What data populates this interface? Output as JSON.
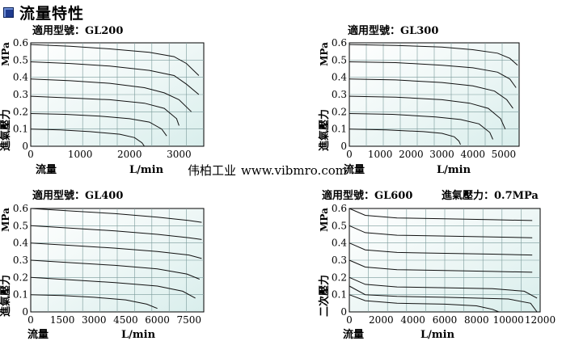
{
  "header": {
    "icon": "square-bullet-icon",
    "title": "流量特性"
  },
  "watermark": {
    "brand": "伟柏工业",
    "url": "www.vibmro.com"
  },
  "chart_data": [
    {
      "type": "line",
      "model_label": "適用型號：GL200",
      "ylabel": "進氣壓力",
      "yunit": "MPa",
      "xlabel": "流量",
      "xunit": "L/min",
      "xticks": [
        0,
        1000,
        2000,
        3000
      ],
      "yticks": [
        0,
        0.1,
        0.2,
        0.3,
        0.4,
        0.5,
        0.6
      ],
      "xlim": [
        0,
        3500
      ],
      "ylim": [
        0,
        0.6
      ],
      "grid": true,
      "series": [
        {
          "x": [
            0,
            800,
            1600,
            2400,
            2900,
            3150,
            3400
          ],
          "y": [
            0.59,
            0.58,
            0.565,
            0.545,
            0.52,
            0.48,
            0.41
          ]
        },
        {
          "x": [
            0,
            800,
            1600,
            2400,
            2900,
            3150,
            3400
          ],
          "y": [
            0.49,
            0.48,
            0.465,
            0.44,
            0.41,
            0.36,
            0.3
          ]
        },
        {
          "x": [
            0,
            800,
            1600,
            2300,
            2700,
            3000,
            3250
          ],
          "y": [
            0.39,
            0.38,
            0.365,
            0.34,
            0.31,
            0.27,
            0.2
          ]
        },
        {
          "x": [
            0,
            800,
            1600,
            2300,
            2700,
            2950,
            3000
          ],
          "y": [
            0.29,
            0.28,
            0.27,
            0.25,
            0.22,
            0.16,
            0.12
          ]
        },
        {
          "x": [
            0,
            700,
            1400,
            2000,
            2400,
            2650,
            2750
          ],
          "y": [
            0.19,
            0.185,
            0.175,
            0.16,
            0.14,
            0.1,
            0.06
          ]
        },
        {
          "x": [
            0,
            600,
            1200,
            1800,
            2100,
            2250,
            2300
          ],
          "y": [
            0.1,
            0.095,
            0.085,
            0.07,
            0.05,
            0.02,
            0.0
          ]
        }
      ]
    },
    {
      "type": "line",
      "model_label": "適用型號：GL300",
      "ylabel": "進氣壓力",
      "yunit": "MPa",
      "xlabel": "流量",
      "xunit": "L/min",
      "xticks": [
        0,
        1000,
        2000,
        3000,
        4000,
        5000
      ],
      "yticks": [
        0,
        0.1,
        0.2,
        0.3,
        0.4,
        0.5,
        0.6
      ],
      "xlim": [
        0,
        5500
      ],
      "ylim": [
        0,
        0.6
      ],
      "grid": true,
      "series": [
        {
          "x": [
            0,
            1500,
            3000,
            4000,
            4800,
            5200,
            5450
          ],
          "y": [
            0.59,
            0.585,
            0.575,
            0.56,
            0.54,
            0.51,
            0.47
          ]
        },
        {
          "x": [
            0,
            1500,
            3000,
            4000,
            4800,
            5200,
            5400
          ],
          "y": [
            0.49,
            0.485,
            0.47,
            0.455,
            0.43,
            0.39,
            0.34
          ]
        },
        {
          "x": [
            0,
            1500,
            3000,
            4000,
            4700,
            5100,
            5300
          ],
          "y": [
            0.39,
            0.385,
            0.37,
            0.35,
            0.32,
            0.27,
            0.22
          ]
        },
        {
          "x": [
            0,
            1500,
            3000,
            3900,
            4500,
            4900,
            5050
          ],
          "y": [
            0.29,
            0.285,
            0.27,
            0.25,
            0.22,
            0.16,
            0.1
          ]
        },
        {
          "x": [
            0,
            1400,
            2800,
            3600,
            4200,
            4550,
            4650
          ],
          "y": [
            0.19,
            0.185,
            0.17,
            0.155,
            0.13,
            0.08,
            0.04
          ]
        },
        {
          "x": [
            0,
            1200,
            2400,
            3000,
            3400,
            3550,
            3600
          ],
          "y": [
            0.1,
            0.095,
            0.085,
            0.075,
            0.055,
            0.03,
            0.01
          ]
        }
      ]
    },
    {
      "type": "line",
      "model_label": "適用型號：GL400",
      "ylabel": "進氣壓力",
      "yunit": "MPa",
      "xlabel": "流量",
      "xunit": "L/min",
      "xticks": [
        0,
        1500,
        3000,
        4500,
        6000,
        7500
      ],
      "yticks": [
        0,
        0.1,
        0.2,
        0.3,
        0.4,
        0.5,
        0.6
      ],
      "xlim": [
        0,
        8200
      ],
      "ylim": [
        0,
        0.6
      ],
      "grid": true,
      "series": [
        {
          "x": [
            0,
            2000,
            4000,
            6000,
            7500,
            8100
          ],
          "y": [
            0.6,
            0.585,
            0.57,
            0.55,
            0.53,
            0.52
          ]
        },
        {
          "x": [
            0,
            2000,
            4000,
            6000,
            7500,
            8100
          ],
          "y": [
            0.5,
            0.485,
            0.47,
            0.45,
            0.43,
            0.42
          ]
        },
        {
          "x": [
            0,
            2000,
            4000,
            6000,
            7500,
            8100
          ],
          "y": [
            0.4,
            0.385,
            0.37,
            0.35,
            0.33,
            0.31
          ]
        },
        {
          "x": [
            0,
            2000,
            4000,
            6000,
            7400,
            8000
          ],
          "y": [
            0.3,
            0.285,
            0.27,
            0.25,
            0.22,
            0.19
          ]
        },
        {
          "x": [
            0,
            2000,
            4000,
            6000,
            7200,
            7800
          ],
          "y": [
            0.2,
            0.185,
            0.17,
            0.15,
            0.12,
            0.08
          ]
        },
        {
          "x": [
            0,
            1500,
            3000,
            4500,
            5500,
            6000
          ],
          "y": [
            0.1,
            0.095,
            0.085,
            0.07,
            0.045,
            0.02
          ]
        }
      ]
    },
    {
      "type": "line",
      "model_label": "適用型號：GL600",
      "inlet_label": "進氣壓力：0.7MPa",
      "ylabel": "二次壓力",
      "yunit": "MPa",
      "xlabel": "流量",
      "xunit": "L/min",
      "xticks": [
        0,
        2000,
        4000,
        6000,
        8000,
        10000,
        12000
      ],
      "yticks": [
        0,
        0.1,
        0.2,
        0.3,
        0.4,
        0.5,
        0.6
      ],
      "xlim": [
        0,
        12000
      ],
      "ylim": [
        0,
        0.6
      ],
      "grid": true,
      "series": [
        {
          "x": [
            0,
            1000,
            3000,
            6000,
            9000,
            11500
          ],
          "y": [
            0.6,
            0.56,
            0.545,
            0.54,
            0.535,
            0.53
          ]
        },
        {
          "x": [
            0,
            1000,
            3000,
            6000,
            9000,
            11500
          ],
          "y": [
            0.5,
            0.46,
            0.445,
            0.44,
            0.435,
            0.43
          ]
        },
        {
          "x": [
            0,
            1000,
            3000,
            6000,
            9000,
            11500
          ],
          "y": [
            0.4,
            0.36,
            0.345,
            0.34,
            0.335,
            0.33
          ]
        },
        {
          "x": [
            0,
            1000,
            3000,
            6000,
            9000,
            11500
          ],
          "y": [
            0.3,
            0.26,
            0.245,
            0.24,
            0.235,
            0.23
          ]
        },
        {
          "x": [
            0,
            1000,
            3000,
            6000,
            9000,
            11000,
            11800
          ],
          "y": [
            0.2,
            0.16,
            0.145,
            0.14,
            0.135,
            0.12,
            0.08
          ]
        },
        {
          "x": [
            0,
            1000,
            3000,
            6000,
            8000,
            9000,
            9400
          ],
          "y": [
            0.1,
            0.065,
            0.05,
            0.045,
            0.035,
            0.015,
            0.0
          ]
        },
        {
          "x": [
            0,
            1000,
            3000,
            6000,
            10000,
            11400,
            11800
          ],
          "y": [
            0.15,
            0.1,
            0.09,
            0.085,
            0.075,
            0.05,
            0.0
          ]
        }
      ]
    }
  ]
}
